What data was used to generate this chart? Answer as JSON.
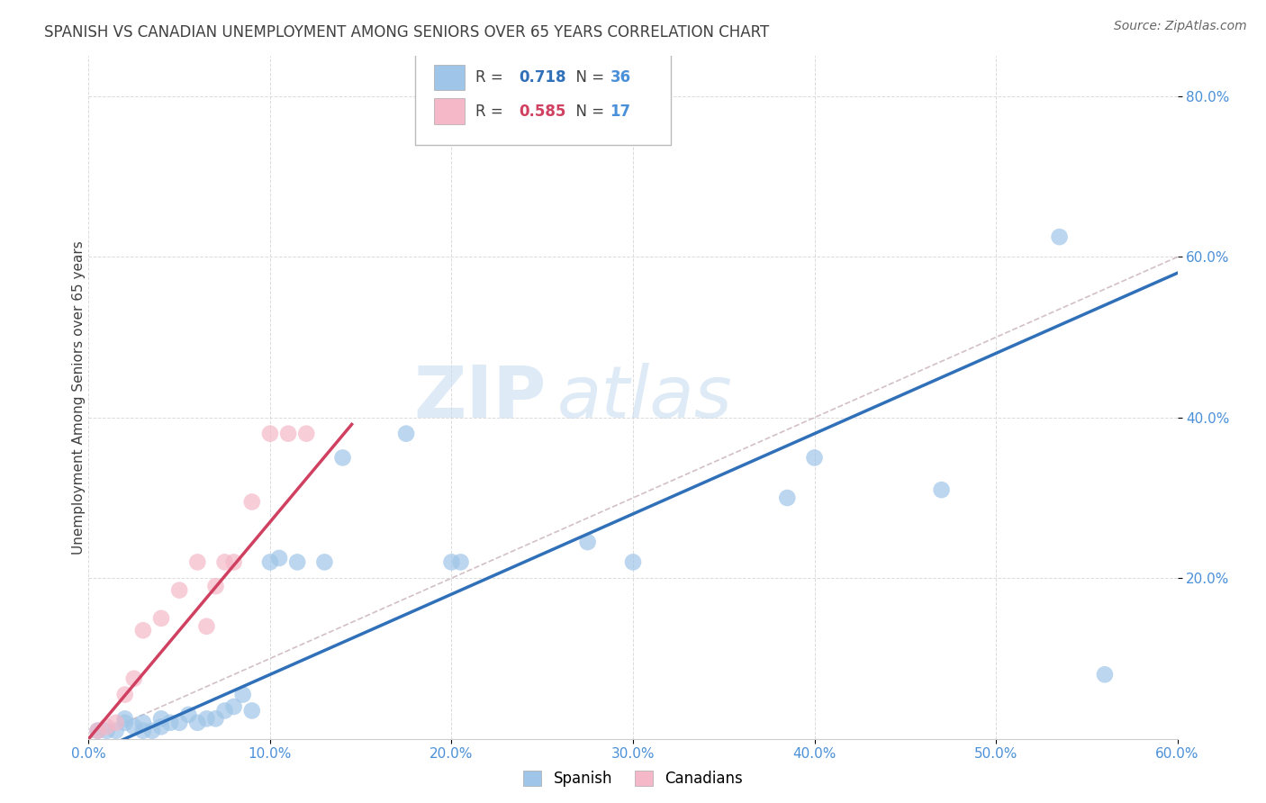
{
  "title": "SPANISH VS CANADIAN UNEMPLOYMENT AMONG SENIORS OVER 65 YEARS CORRELATION CHART",
  "source": "Source: ZipAtlas.com",
  "ylabel": "Unemployment Among Seniors over 65 years",
  "xlim": [
    0.0,
    0.6
  ],
  "ylim": [
    0.0,
    0.85
  ],
  "xtick_labels": [
    "0.0%",
    "10.0%",
    "20.0%",
    "30.0%",
    "40.0%",
    "50.0%",
    "60.0%"
  ],
  "xtick_vals": [
    0.0,
    0.1,
    0.2,
    0.3,
    0.4,
    0.5,
    0.6
  ],
  "ytick_labels": [
    "20.0%",
    "40.0%",
    "60.0%",
    "80.0%"
  ],
  "ytick_vals": [
    0.2,
    0.4,
    0.6,
    0.8
  ],
  "spanish_color": "#9FC5E8",
  "canadian_color": "#F4B8C8",
  "regression_spanish_color": "#3070B8",
  "regression_canadian_color": "#D04060",
  "diagonal_color": "#C8B0B8",
  "R_spanish": "0.718",
  "N_spanish": "36",
  "R_canadian": "0.585",
  "N_canadian": "17",
  "spanish_x": [
    0.005,
    0.01,
    0.015,
    0.02,
    0.02,
    0.025,
    0.03,
    0.03,
    0.035,
    0.04,
    0.04,
    0.045,
    0.05,
    0.055,
    0.06,
    0.065,
    0.07,
    0.075,
    0.08,
    0.085,
    0.09,
    0.1,
    0.105,
    0.115,
    0.13,
    0.14,
    0.175,
    0.2,
    0.205,
    0.275,
    0.3,
    0.385,
    0.4,
    0.47,
    0.535,
    0.56
  ],
  "spanish_y": [
    0.01,
    0.01,
    0.01,
    0.02,
    0.025,
    0.015,
    0.02,
    0.01,
    0.01,
    0.015,
    0.025,
    0.02,
    0.02,
    0.03,
    0.02,
    0.025,
    0.025,
    0.035,
    0.04,
    0.055,
    0.035,
    0.22,
    0.225,
    0.22,
    0.22,
    0.35,
    0.38,
    0.22,
    0.22,
    0.245,
    0.22,
    0.3,
    0.35,
    0.31,
    0.625,
    0.08
  ],
  "canadian_x": [
    0.005,
    0.01,
    0.015,
    0.02,
    0.025,
    0.03,
    0.04,
    0.05,
    0.06,
    0.065,
    0.07,
    0.075,
    0.08,
    0.09,
    0.1,
    0.11,
    0.12
  ],
  "canadian_y": [
    0.01,
    0.015,
    0.02,
    0.055,
    0.075,
    0.135,
    0.15,
    0.185,
    0.22,
    0.14,
    0.19,
    0.22,
    0.22,
    0.295,
    0.38,
    0.38,
    0.38
  ],
  "watermark_zip": "ZIP",
  "watermark_atlas": "atlas",
  "background_color": "#FFFFFF",
  "font_color": "#404040",
  "tick_label_color": "#4A90D9",
  "legend_R_label_color": "#404040",
  "legend_N_label_color": "#4A90D9"
}
